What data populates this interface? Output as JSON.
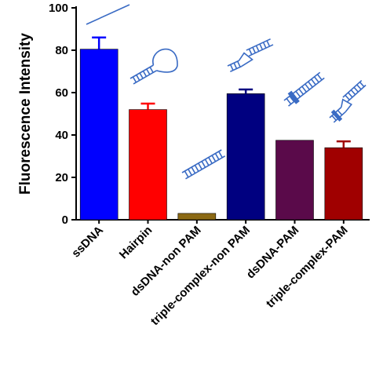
{
  "chart_data": {
    "type": "bar",
    "title": "",
    "xlabel": "",
    "ylabel": "Fluorescence Intensity",
    "ylim": [
      0,
      100
    ],
    "yticks": [
      "0",
      "20",
      "40",
      "60",
      "80",
      "100"
    ],
    "categories": [
      "ssDNA",
      "Hairpin",
      "dsDNA-non PAM",
      "triple-complex-non PAM",
      "dsDNA-PAM",
      "triple-complex-PAM"
    ],
    "values": [
      80.5,
      52,
      3,
      59.5,
      37.5,
      34
    ],
    "errors": [
      5.5,
      2.8,
      0,
      2,
      0,
      3
    ],
    "colors": [
      "#0000ff",
      "#ff0000",
      "#8b6914",
      "#000080",
      "#5a0a4a",
      "#a00000"
    ],
    "grid": false,
    "icons": [
      "ssdna-line-icon",
      "hairpin-icon",
      "dsdna-icon",
      "triple-complex-icon",
      "dsdna-pam-icon",
      "triple-complex-pam-icon"
    ],
    "icon_color": "#3a6bc4"
  }
}
